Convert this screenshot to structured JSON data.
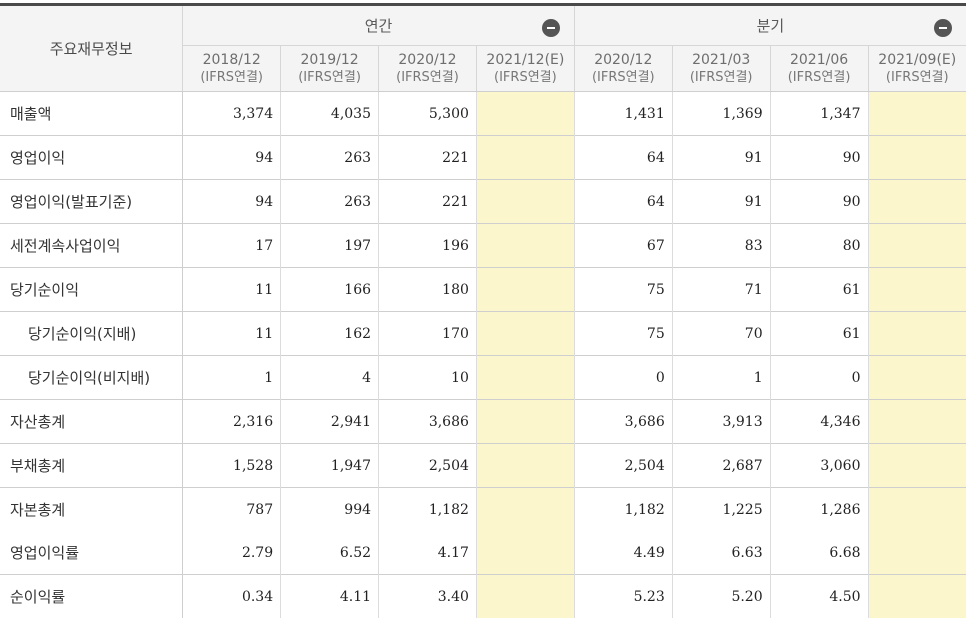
{
  "header": {
    "label": "주요재무정보",
    "annual_title": "연간",
    "quarter_title": "분기"
  },
  "periods": [
    {
      "date": "2018/12",
      "basis": "(IFRS연결)",
      "estimate": false
    },
    {
      "date": "2019/12",
      "basis": "(IFRS연결)",
      "estimate": false
    },
    {
      "date": "2020/12",
      "basis": "(IFRS연결)",
      "estimate": false
    },
    {
      "date": "2021/12(E)",
      "basis": "(IFRS연결)",
      "estimate": true
    },
    {
      "date": "2020/12",
      "basis": "(IFRS연결)",
      "estimate": false
    },
    {
      "date": "2021/03",
      "basis": "(IFRS연결)",
      "estimate": false
    },
    {
      "date": "2021/06",
      "basis": "(IFRS연결)",
      "estimate": false
    },
    {
      "date": "2021/09(E)",
      "basis": "(IFRS연결)",
      "estimate": true
    }
  ],
  "rows": [
    {
      "label": "매출액",
      "sub": false,
      "values": [
        "3,374",
        "4,035",
        "5,300",
        "",
        "1,431",
        "1,369",
        "1,347",
        ""
      ]
    },
    {
      "label": "영업이익",
      "sub": false,
      "values": [
        "94",
        "263",
        "221",
        "",
        "64",
        "91",
        "90",
        ""
      ]
    },
    {
      "label": "영업이익(발표기준)",
      "sub": false,
      "values": [
        "94",
        "263",
        "221",
        "",
        "64",
        "91",
        "90",
        ""
      ]
    },
    {
      "label": "세전계속사업이익",
      "sub": false,
      "values": [
        "17",
        "197",
        "196",
        "",
        "67",
        "83",
        "80",
        ""
      ]
    },
    {
      "label": "당기순이익",
      "sub": false,
      "values": [
        "11",
        "166",
        "180",
        "",
        "75",
        "71",
        "61",
        ""
      ]
    },
    {
      "label": "당기순이익(지배)",
      "sub": true,
      "values": [
        "11",
        "162",
        "170",
        "",
        "75",
        "70",
        "61",
        ""
      ]
    },
    {
      "label": "당기순이익(비지배)",
      "sub": true,
      "values": [
        "1",
        "4",
        "10",
        "",
        "0",
        "1",
        "0",
        ""
      ]
    },
    {
      "label": "자산총계",
      "sub": false,
      "values": [
        "2,316",
        "2,941",
        "3,686",
        "",
        "3,686",
        "3,913",
        "4,346",
        ""
      ]
    },
    {
      "label": "부채총계",
      "sub": false,
      "values": [
        "1,528",
        "1,947",
        "2,504",
        "",
        "2,504",
        "2,687",
        "3,060",
        ""
      ]
    },
    {
      "label": "자본총계",
      "sub": false,
      "values": [
        "787",
        "994",
        "1,182",
        "",
        "1,182",
        "1,225",
        "1,286",
        ""
      ]
    },
    {
      "label": "영업이익률",
      "sub": false,
      "noBorder": true,
      "values": [
        "2.79",
        "6.52",
        "4.17",
        "",
        "4.49",
        "6.63",
        "6.68",
        ""
      ]
    },
    {
      "label": "순이익률",
      "sub": false,
      "values": [
        "0.34",
        "4.11",
        "3.40",
        "",
        "5.23",
        "5.20",
        "4.50",
        ""
      ]
    }
  ],
  "colors": {
    "estimate_bg": "#fcf6cc",
    "header_bg": "#f4f4f5",
    "top_rule": "#4a4a4a"
  }
}
